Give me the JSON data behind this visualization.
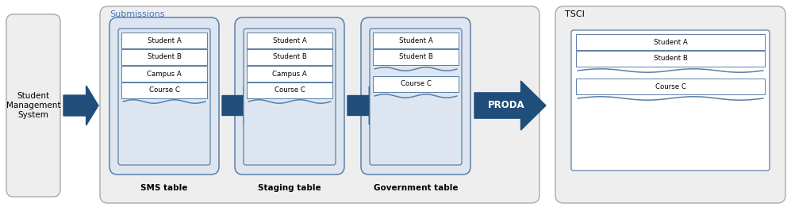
{
  "outer_bg": "#ffffff",
  "sms_system_fill": "#eeeeee",
  "sms_system_stroke": "#aaaaaa",
  "submissions_fill": "#eeeeee",
  "submissions_stroke": "#aaaaaa",
  "tsci_fill": "#eeeeee",
  "tsci_stroke": "#aaaaaa",
  "table_container_fill": "#dde6f0",
  "table_container_stroke": "#5b7fa6",
  "doc_box_fill": "#dde6f0",
  "doc_box_stroke": "#5b7fa6",
  "record_fill": "#ffffff",
  "record_stroke": "#5b7fa6",
  "arrow_color": "#1e4e79",
  "submissions_label_color": "#4472c4",
  "tsci_label_color": "#000000",
  "label_bold_color": "#000000",
  "title_submissions": "Submissions",
  "title_tsci": "TSCI",
  "sms_label": "SMS table",
  "staging_label": "Staging table",
  "gov_label": "Government table",
  "sms_system_label": "Student\nManagement\nSystem",
  "proda_label": "PRODA",
  "sms_records": [
    "Student A",
    "Student B",
    "Campus A",
    "Course C"
  ],
  "staging_records": [
    "Student A",
    "Student B",
    "Campus A",
    "Course C"
  ],
  "gov_records_top": [
    "Student A",
    "Student B"
  ],
  "gov_records_bottom": [
    "Course C"
  ],
  "tsci_records_top": [
    "Student A",
    "Student B"
  ],
  "tsci_records_bottom": [
    "Course C"
  ]
}
